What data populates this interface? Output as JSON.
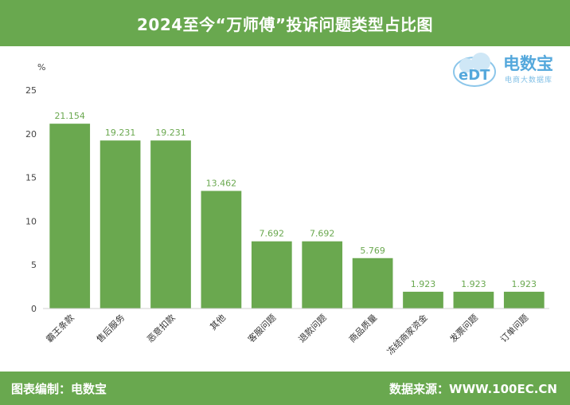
{
  "header": {
    "title": "2024至今“万师傅”投诉问题类型占比图"
  },
  "footer": {
    "left": "图表编制：电数宝",
    "right": "数据来源：WWW.100EC.CN"
  },
  "logo": {
    "brand": "电数宝",
    "sub": "电商大数据库",
    "mark_text": "eDT"
  },
  "colors": {
    "bar": "#6aa84f",
    "header": "#69a84f",
    "logo": "#55a8dc"
  },
  "chart_data": {
    "type": "bar",
    "ylabel": "%",
    "ylim": [
      0,
      25
    ],
    "yticks": [
      0,
      5,
      10,
      15,
      20,
      25
    ],
    "categories": [
      "霸王条款",
      "售后服务",
      "恶意扣款",
      "其他",
      "客服问题",
      "退款问题",
      "商品质量",
      "冻结商家资金",
      "发票问题",
      "订单问题"
    ],
    "values": [
      21.154,
      19.231,
      19.231,
      13.462,
      7.692,
      7.692,
      5.769,
      1.923,
      1.923,
      1.923
    ],
    "value_labels": [
      "21.154",
      "19.231",
      "19.231",
      "13.462",
      "7.692",
      "7.692",
      "5.769",
      "1.923",
      "1.923",
      "1.923"
    ],
    "grid": false
  }
}
